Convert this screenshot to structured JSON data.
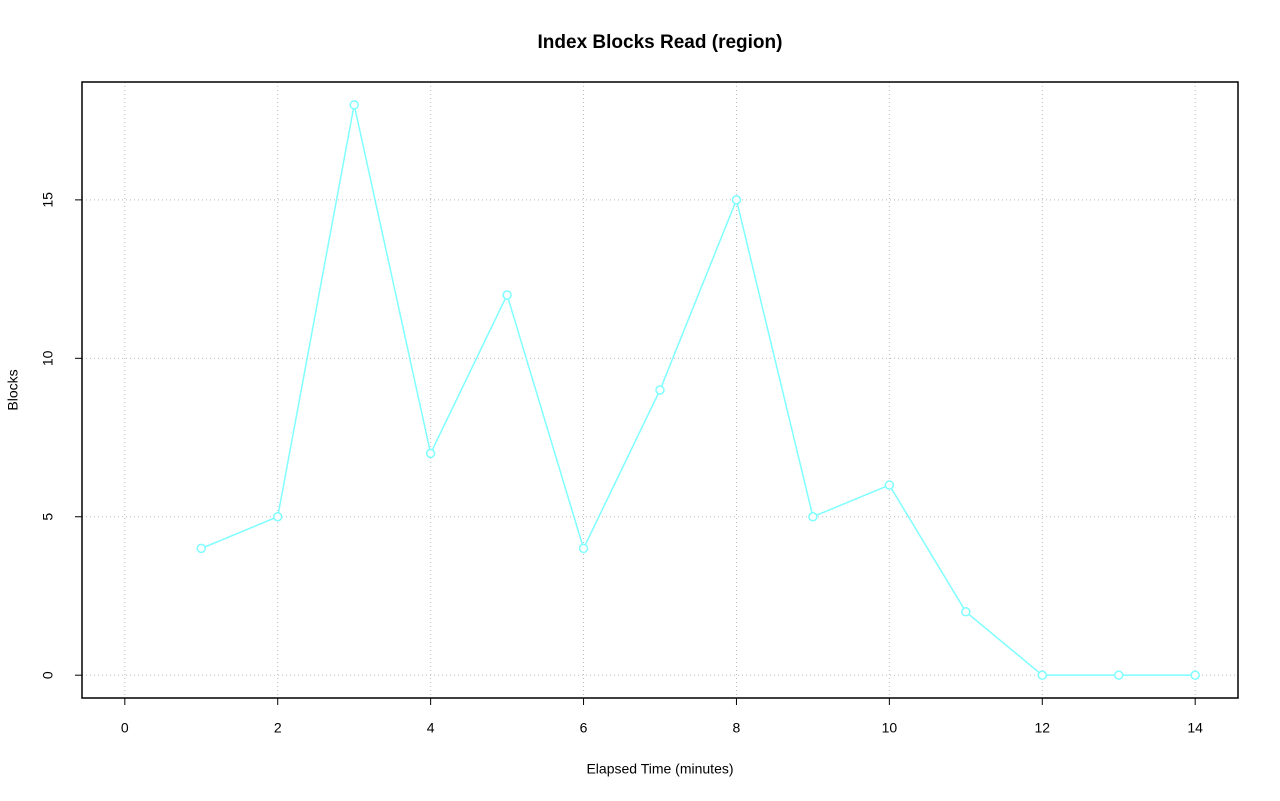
{
  "chart_data": {
    "type": "line",
    "title": "Index Blocks Read (region)",
    "x_label": "Elapsed Time (minutes)",
    "y_label": "Blocks",
    "x": [
      1,
      2,
      3,
      4,
      5,
      6,
      7,
      8,
      9,
      10,
      11,
      12,
      13,
      14
    ],
    "series": [
      {
        "color": "#7fffff",
        "values": [
          4,
          5,
          18,
          7,
          12,
          4,
          9,
          15,
          5,
          6,
          2,
          0,
          0,
          0
        ]
      }
    ],
    "xlim": [
      -0.56,
      14.56
    ],
    "ylim": [
      -0.72,
      18.72
    ],
    "xticks": [
      0,
      2,
      4,
      6,
      8,
      10,
      12,
      14
    ],
    "yticks": [
      0,
      5,
      10,
      15
    ],
    "grid": true
  }
}
